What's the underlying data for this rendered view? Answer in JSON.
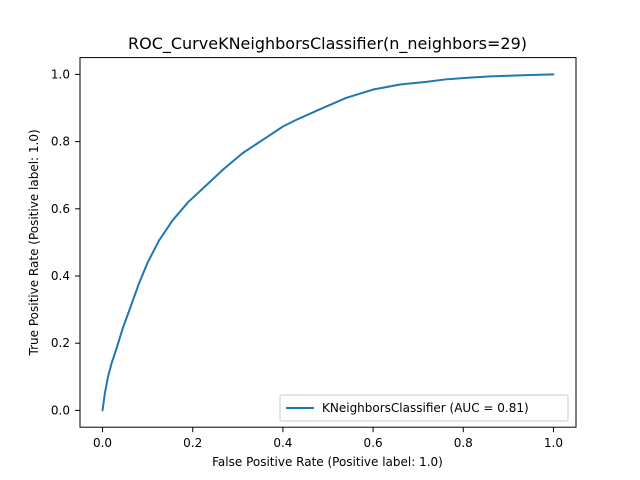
{
  "chart_data": {
    "type": "line",
    "title": "ROC_CurveKNeighborsClassifier(n_neighbors=29)",
    "xlabel": "False Positive Rate (Positive label: 1.0)",
    "ylabel": "True Positive Rate (Positive label: 1.0)",
    "xlim": [
      -0.05,
      1.05
    ],
    "ylim": [
      -0.05,
      1.05
    ],
    "xticks": [
      0.0,
      0.2,
      0.4,
      0.6,
      0.8,
      1.0
    ],
    "yticks": [
      0.0,
      0.2,
      0.4,
      0.6,
      0.8,
      1.0
    ],
    "xtick_labels": [
      "0.0",
      "0.2",
      "0.4",
      "0.6",
      "0.8",
      "1.0"
    ],
    "ytick_labels": [
      "0.0",
      "0.2",
      "0.4",
      "0.6",
      "0.8",
      "1.0"
    ],
    "grid": false,
    "legend_position": "lower-right",
    "series": [
      {
        "name": "KNeighborsClassifier (AUC = 0.81)",
        "color": "#1f77b4",
        "x": [
          0.0,
          0.005,
          0.012,
          0.02,
          0.03,
          0.045,
          0.06,
          0.08,
          0.1,
          0.125,
          0.155,
          0.19,
          0.23,
          0.27,
          0.31,
          0.355,
          0.4,
          0.43,
          0.48,
          0.54,
          0.6,
          0.66,
          0.72,
          0.76,
          0.81,
          0.86,
          0.9,
          0.94,
          0.97,
          1.0
        ],
        "y": [
          0.0,
          0.05,
          0.1,
          0.14,
          0.18,
          0.245,
          0.3,
          0.375,
          0.44,
          0.505,
          0.565,
          0.62,
          0.67,
          0.72,
          0.765,
          0.805,
          0.845,
          0.865,
          0.895,
          0.93,
          0.955,
          0.97,
          0.978,
          0.985,
          0.99,
          0.994,
          0.996,
          0.998,
          0.999,
          1.0
        ]
      }
    ]
  }
}
